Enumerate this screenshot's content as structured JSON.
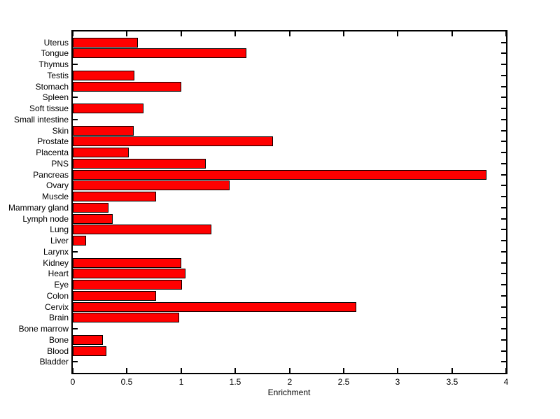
{
  "chart_data": {
    "type": "bar",
    "orientation": "horizontal",
    "title": "",
    "xlabel": "Enrichment",
    "ylabel": "",
    "xlim": [
      0,
      4
    ],
    "xticks": [
      0,
      0.5,
      1,
      1.5,
      2,
      2.5,
      3,
      3.5,
      4
    ],
    "xtick_labels": [
      "0",
      "0.5",
      "1",
      "1.5",
      "2",
      "2.5",
      "3",
      "3.5",
      "4"
    ],
    "grid": false,
    "legend": null,
    "bar_color": "#ff0000",
    "bar_edge_color": "#000000",
    "background_color": "#ffffff",
    "categories_top_to_bottom": [
      "Uterus",
      "Tongue",
      "Thymus",
      "Testis",
      "Stomach",
      "Spleen",
      "Soft tissue",
      "Small intestine",
      "Skin",
      "Prostate",
      "Placenta",
      "PNS",
      "Pancreas",
      "Ovary",
      "Muscle",
      "Mammary gland",
      "Lymph node",
      "Lung",
      "Liver",
      "Larynx",
      "Kidney",
      "Heart",
      "Eye",
      "Colon",
      "Cervix",
      "Brain",
      "Bone marrow",
      "Bone",
      "Blood",
      "Bladder"
    ],
    "values": [
      0.6,
      1.6,
      0,
      0.57,
      1.0,
      0,
      0.65,
      0,
      0.56,
      1.85,
      0.52,
      1.23,
      3.82,
      1.45,
      0.77,
      0.33,
      0.37,
      1.28,
      0.12,
      0,
      1.0,
      1.04,
      1.01,
      0.77,
      2.62,
      0.98,
      0,
      0.28,
      0.31,
      0
    ]
  }
}
